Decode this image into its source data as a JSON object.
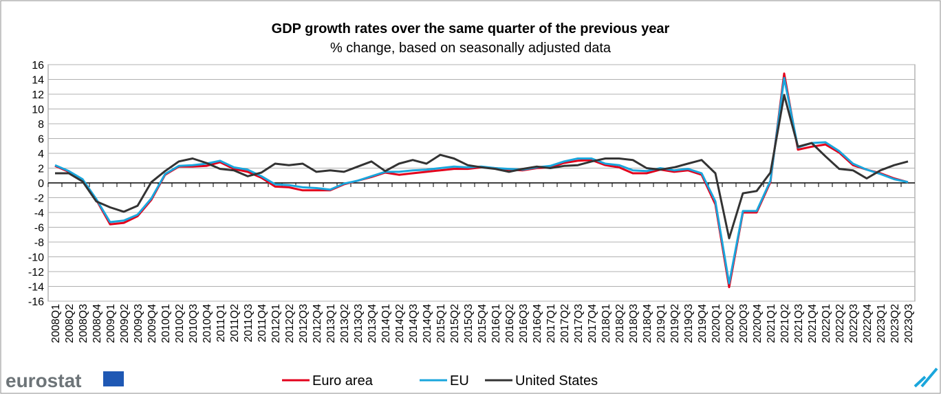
{
  "chart_data": {
    "type": "line",
    "title": "GDP growth rates over the same quarter of the previous year",
    "subtitle": "% change, based on seasonally adjusted data",
    "logo_text": "eurostat",
    "categories": [
      "2008Q1",
      "2008Q2",
      "2008Q3",
      "2008Q4",
      "2009Q1",
      "2009Q2",
      "2009Q3",
      "2009Q4",
      "2010Q1",
      "2010Q2",
      "2010Q3",
      "2010Q4",
      "2011Q1",
      "2011Q2",
      "2011Q3",
      "2011Q4",
      "2012Q1",
      "2012Q2",
      "2012Q3",
      "2012Q4",
      "2013Q1",
      "2013Q2",
      "2013Q3",
      "2013Q4",
      "2014Q1",
      "2014Q2",
      "2014Q3",
      "2014Q4",
      "2015Q1",
      "2015Q2",
      "2015Q3",
      "2015Q4",
      "2016Q1",
      "2016Q2",
      "2016Q3",
      "2016Q4",
      "2017Q1",
      "2017Q2",
      "2017Q3",
      "2017Q4",
      "2018Q1",
      "2018Q2",
      "2018Q3",
      "2018Q4",
      "2019Q1",
      "2019Q2",
      "2019Q3",
      "2019Q4",
      "2020Q1",
      "2020Q2",
      "2020Q3",
      "2020Q4",
      "2021Q1",
      "2021Q2",
      "2021Q3",
      "2021Q4",
      "2022Q1",
      "2022Q2",
      "2022Q3",
      "2022Q4",
      "2023Q1",
      "2023Q2",
      "2023Q3"
    ],
    "series": [
      {
        "name": "Euro area",
        "color": "#e3001b",
        "values": [
          2.3,
          1.5,
          0.4,
          -2.3,
          -5.6,
          -5.4,
          -4.5,
          -2.3,
          1.1,
          2.2,
          2.2,
          2.3,
          2.8,
          1.9,
          1.5,
          0.7,
          -0.5,
          -0.6,
          -1.0,
          -1.0,
          -1.0,
          -0.2,
          0.3,
          0.8,
          1.4,
          1.1,
          1.3,
          1.5,
          1.7,
          1.9,
          1.9,
          2.1,
          2.0,
          1.8,
          1.7,
          2.0,
          2.1,
          2.7,
          3.0,
          3.1,
          2.4,
          2.1,
          1.3,
          1.3,
          1.8,
          1.5,
          1.7,
          1.1,
          -2.9,
          -14.1,
          -4.0,
          -4.0,
          0.1,
          14.8,
          4.5,
          4.9,
          5.2,
          4.1,
          2.4,
          1.8,
          1.3,
          0.6,
          0.1
        ]
      },
      {
        "name": "EU",
        "color": "#1aa6dc",
        "values": [
          2.4,
          1.6,
          0.5,
          -2.2,
          -5.3,
          -5.1,
          -4.3,
          -2.1,
          1.2,
          2.3,
          2.4,
          2.6,
          3.0,
          2.1,
          1.8,
          0.9,
          -0.2,
          -0.3,
          -0.6,
          -0.7,
          -0.9,
          -0.1,
          0.3,
          0.9,
          1.5,
          1.5,
          1.7,
          1.8,
          2.0,
          2.2,
          2.1,
          2.2,
          2.0,
          1.9,
          1.8,
          2.1,
          2.3,
          2.9,
          3.3,
          3.3,
          2.6,
          2.4,
          1.7,
          1.6,
          2.0,
          1.7,
          1.9,
          1.3,
          -2.5,
          -13.6,
          -3.8,
          -3.8,
          0.3,
          14.2,
          4.8,
          5.4,
          5.5,
          4.3,
          2.6,
          1.8,
          1.2,
          0.5,
          0.1
        ]
      },
      {
        "name": "United States",
        "color": "#333333",
        "values": [
          1.3,
          1.3,
          0.2,
          -2.5,
          -3.3,
          -3.9,
          -3.1,
          0.1,
          1.6,
          2.9,
          3.3,
          2.7,
          1.9,
          1.7,
          0.9,
          1.4,
          2.6,
          2.4,
          2.6,
          1.5,
          1.7,
          1.5,
          2.2,
          2.9,
          1.6,
          2.6,
          3.1,
          2.6,
          3.8,
          3.3,
          2.4,
          2.1,
          1.9,
          1.5,
          1.9,
          2.2,
          2.0,
          2.3,
          2.4,
          2.9,
          3.3,
          3.3,
          3.1,
          2.0,
          1.8,
          2.1,
          2.6,
          3.1,
          1.3,
          -7.5,
          -1.4,
          -1.1,
          1.4,
          11.9,
          4.9,
          5.4,
          3.6,
          1.9,
          1.7,
          0.6,
          1.7,
          2.4,
          2.9
        ]
      }
    ],
    "ylim": [
      -16,
      16
    ],
    "yticks": [
      -16,
      -14,
      -12,
      -10,
      -8,
      -6,
      -4,
      -2,
      0,
      2,
      4,
      6,
      8,
      10,
      12,
      14,
      16
    ],
    "grid": true
  }
}
